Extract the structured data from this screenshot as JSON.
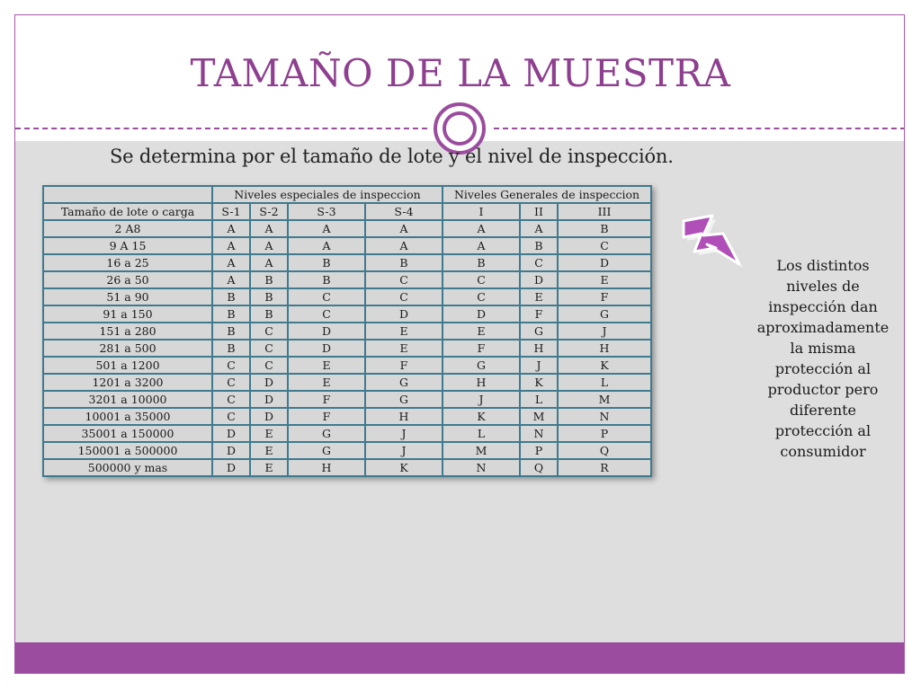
{
  "title": "TAMAÑO DE LA MUESTRA",
  "subtitle": "Se determina por el tamaño de lote y el nivel de inspección.",
  "table": {
    "group_headers": [
      "Niveles especiales de inspeccion",
      "Niveles Generales de inspeccion"
    ],
    "columns": [
      "Tamaño de lote o carga",
      "S-1",
      "S-2",
      "S-3",
      "S-4",
      "I",
      "II",
      "III"
    ],
    "rows": [
      [
        "2 A8",
        "A",
        "A",
        "A",
        "A",
        "A",
        "A",
        "B"
      ],
      [
        "9 A 15",
        "A",
        "A",
        "A",
        "A",
        "A",
        "B",
        "C"
      ],
      [
        "16 a 25",
        "A",
        "A",
        "B",
        "B",
        "B",
        "C",
        "D"
      ],
      [
        "26 a 50",
        "A",
        "B",
        "B",
        "C",
        "C",
        "D",
        "E"
      ],
      [
        "51 a 90",
        "B",
        "B",
        "C",
        "C",
        "C",
        "E",
        "F"
      ],
      [
        "91 a 150",
        "B",
        "B",
        "C",
        "D",
        "D",
        "F",
        "G"
      ],
      [
        "151 a 280",
        "B",
        "C",
        "D",
        "E",
        "E",
        "G",
        "J"
      ],
      [
        "281 a 500",
        "B",
        "C",
        "D",
        "E",
        "F",
        "H",
        "H"
      ],
      [
        "501 a 1200",
        "C",
        "C",
        "E",
        "F",
        "G",
        "J",
        "K"
      ],
      [
        "1201 a 3200",
        "C",
        "D",
        "E",
        "G",
        "H",
        "K",
        "L"
      ],
      [
        "3201 a 10000",
        "C",
        "D",
        "F",
        "G",
        "J",
        "L",
        "M"
      ],
      [
        "10001 a 35000",
        "C",
        "D",
        "F",
        "H",
        "K",
        "M",
        "N"
      ],
      [
        "35001 a 150000",
        "D",
        "E",
        "G",
        "J",
        "L",
        "N",
        "P"
      ],
      [
        "150001 a 500000",
        "D",
        "E",
        "G",
        "J",
        "M",
        "P",
        "Q"
      ],
      [
        "500000 y mas",
        "D",
        "E",
        "H",
        "K",
        "N",
        "Q",
        "R"
      ]
    ]
  },
  "side_note_lines": [
    "Los distintos",
    "niveles de",
    "inspección dan",
    "aproximadamente",
    "la misma",
    "protección al",
    "productor pero",
    "diferente",
    "protección al",
    "consumidor"
  ],
  "colors": {
    "accent": "#9b4c9e",
    "title": "#8e3f8f",
    "table_border": "#3f7a8e",
    "content_bg": "#dedede"
  },
  "icons": {
    "lightning": "lightning-bolt-icon",
    "ornament": "double-circle-ornament"
  }
}
